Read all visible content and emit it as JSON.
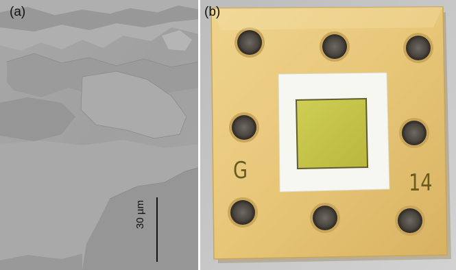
{
  "panels": [
    {
      "label": "(a)",
      "description_icon": "micrograph-image",
      "scale_bar_label": "30 µm"
    },
    {
      "label": "(b)",
      "description_icon": "sample-chip-photo",
      "markings": {
        "left": "G",
        "right": "14"
      }
    }
  ],
  "colors": {
    "micrograph_background": "#a3a3a3",
    "micrograph_dark_flake": "#9a9a9a",
    "micrograph_light_flake": "#adadad",
    "carrier_gold": "#e6c67a",
    "white_frame": "#f7f7f2",
    "sample_yellow": "#c6c44a",
    "sample_edge": "#5f5a2f"
  }
}
